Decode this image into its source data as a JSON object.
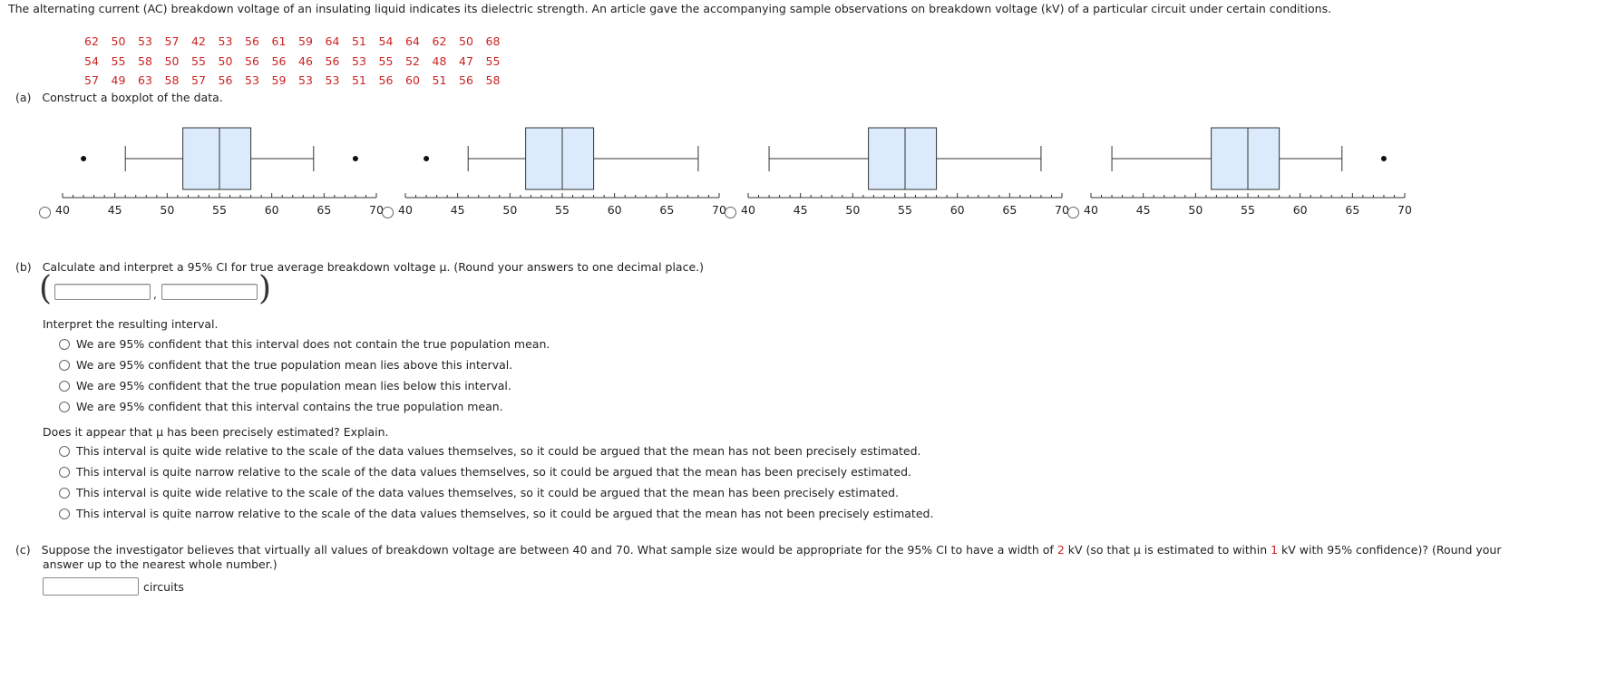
{
  "intro": "The alternating current (AC) breakdown voltage of an insulating liquid indicates its dielectric strength. An article gave the accompanying sample observations on breakdown voltage (kV) of a particular circuit under certain conditions.",
  "data_rows": [
    [
      "62",
      "50",
      "53",
      "57",
      "42",
      "53",
      "56",
      "61",
      "59",
      "64",
      "51",
      "54",
      "64",
      "62",
      "50",
      "68"
    ],
    [
      "54",
      "55",
      "58",
      "50",
      "55",
      "50",
      "56",
      "56",
      "46",
      "56",
      "53",
      "55",
      "52",
      "48",
      "47",
      "55"
    ],
    [
      "57",
      "49",
      "63",
      "58",
      "57",
      "56",
      "53",
      "59",
      "53",
      "53",
      "51",
      "56",
      "60",
      "51",
      "56",
      "58"
    ]
  ],
  "part_a": {
    "label": "(a)",
    "text": "Construct a boxplot of the data."
  },
  "boxplot_ticks": [
    "40",
    "45",
    "50",
    "55",
    "60",
    "65",
    "70"
  ],
  "chart_data": [
    {
      "type": "boxplot",
      "option": 1,
      "xlim": [
        40,
        70
      ],
      "whisker_low": 46,
      "q1": 51.5,
      "median": 55,
      "q3": 58,
      "whisker_high": 64,
      "outliers": [
        42,
        68
      ]
    },
    {
      "type": "boxplot",
      "option": 2,
      "xlim": [
        40,
        70
      ],
      "whisker_low": 46,
      "q1": 51.5,
      "median": 55,
      "q3": 58,
      "whisker_high": 68,
      "outliers": [
        42
      ]
    },
    {
      "type": "boxplot",
      "option": 3,
      "xlim": [
        40,
        70
      ],
      "whisker_low": 42,
      "q1": 51.5,
      "median": 55,
      "q3": 58,
      "whisker_high": 68,
      "outliers": []
    },
    {
      "type": "boxplot",
      "option": 4,
      "xlim": [
        40,
        70
      ],
      "whisker_low": 42,
      "q1": 51.5,
      "median": 55,
      "q3": 58,
      "whisker_high": 64,
      "outliers": [
        68
      ]
    }
  ],
  "part_b": {
    "label": "(b)",
    "text": "Calculate and interpret a 95% CI for true average breakdown voltage μ. (Round your answers to one decimal place.)",
    "open_paren": "(",
    "comma": ",",
    "close_paren": ")",
    "interpret_prompt": "Interpret the resulting interval.",
    "interpret_options": [
      "We are 95% confident that this interval does not contain the true population mean.",
      "We are 95% confident that the true population mean lies above this interval.",
      "We are 95% confident that the true population mean lies below this interval.",
      "We are 95% confident that this interval contains the true population mean."
    ],
    "precise_prompt": "Does it appear that μ has been precisely estimated? Explain.",
    "precise_options": [
      "This interval is quite wide relative to the scale of the data values themselves, so it could be argued that the mean has not been precisely estimated.",
      "This interval is quite narrow relative to the scale of the data values themselves, so it could be argued that the mean has been precisely estimated.",
      "This interval is quite wide relative to the scale of the data values themselves, so it could be argued that the mean has been precisely estimated.",
      "This interval is quite narrow relative to the scale of the data values themselves, so it could be argued that the mean has not been precisely estimated."
    ]
  },
  "part_c": {
    "label": "(c)",
    "text_1": "Suppose the investigator believes that virtually all values of breakdown voltage are between 40 and 70. What sample size would be appropriate for the 95% CI to have a width of",
    "width_value": "2",
    "text_2": "kV (so that μ is estimated to within",
    "within_value": "1",
    "text_3": "kV with 95% confidence)? (Round your",
    "text_4": "answer up to the nearest whole number.)",
    "unit": "circuits"
  },
  "colors": {
    "box_fill": "#dcebfb",
    "data_red": "#cc2222"
  }
}
